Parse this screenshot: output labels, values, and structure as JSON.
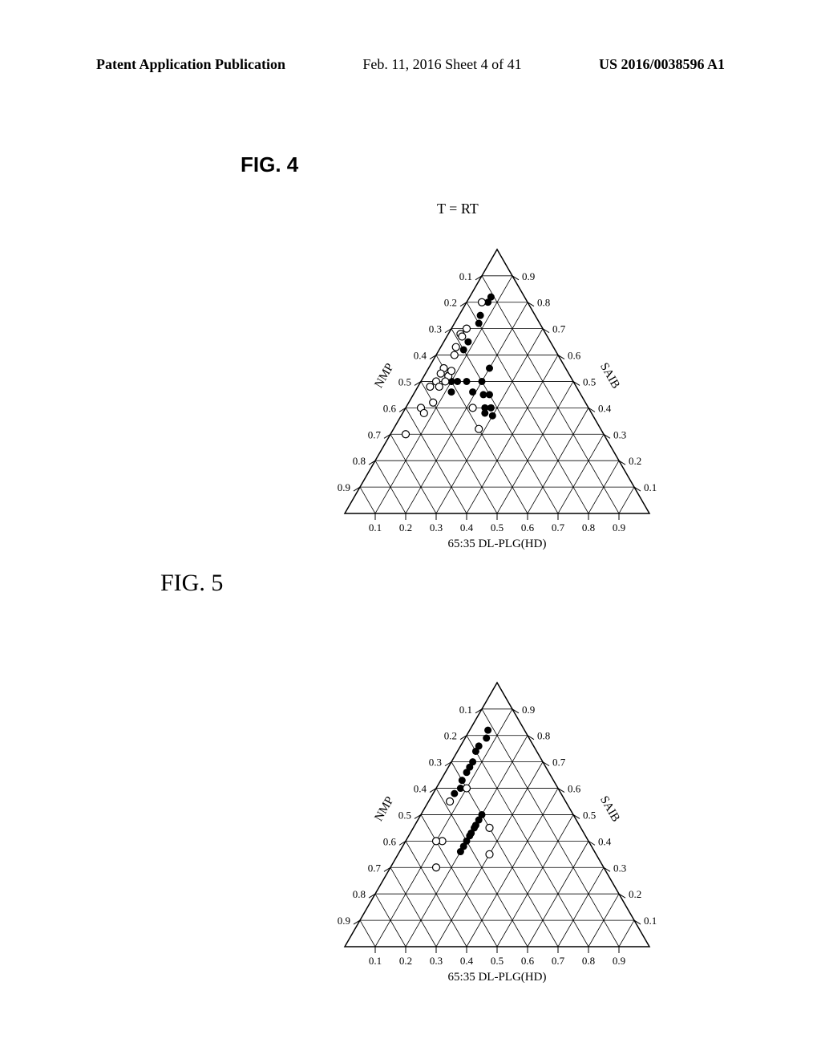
{
  "header": {
    "left": "Patent Application Publication",
    "center": "Feb. 11, 2016  Sheet 4 of 41",
    "right": "US 2016/0038596 A1"
  },
  "figures": {
    "fig4": {
      "label": "FIG. 4",
      "chart": {
        "type": "ternary",
        "title": "T = RT",
        "left_axis": {
          "label": "NMP",
          "ticks": [
            "0.1",
            "0.2",
            "0.3",
            "0.4",
            "0.5",
            "0.6",
            "0.7",
            "0.8",
            "0.9"
          ]
        },
        "right_axis": {
          "label": "SAIB",
          "ticks": [
            "0.1",
            "0.2",
            "0.3",
            "0.4",
            "0.5",
            "0.6",
            "0.7",
            "0.8",
            "0.9"
          ]
        },
        "bottom_axis": {
          "label": "65:35 DL-PLG(HD)",
          "ticks": [
            "0.1",
            "0.2",
            "0.3",
            "0.4",
            "0.5",
            "0.6",
            "0.7",
            "0.8",
            "0.9"
          ]
        },
        "grid_color": "#000000",
        "grid_width": 0.8,
        "background_color": "#ffffff",
        "tick_fontsize": 13,
        "axis_label_fontsize": 15,
        "title_fontsize": 18,
        "points_filled": [
          {
            "a": 0.11,
            "b": 0.82,
            "c": 0.07
          },
          {
            "a": 0.13,
            "b": 0.8,
            "c": 0.07
          },
          {
            "a": 0.18,
            "b": 0.75,
            "c": 0.07
          },
          {
            "a": 0.2,
            "b": 0.72,
            "c": 0.08
          },
          {
            "a": 0.27,
            "b": 0.65,
            "c": 0.08
          },
          {
            "a": 0.3,
            "b": 0.62,
            "c": 0.08
          },
          {
            "a": 0.4,
            "b": 0.5,
            "c": 0.1
          },
          {
            "a": 0.38,
            "b": 0.5,
            "c": 0.12
          },
          {
            "a": 0.42,
            "b": 0.46,
            "c": 0.12
          },
          {
            "a": 0.25,
            "b": 0.55,
            "c": 0.2
          },
          {
            "a": 0.3,
            "b": 0.5,
            "c": 0.2
          },
          {
            "a": 0.35,
            "b": 0.5,
            "c": 0.15
          },
          {
            "a": 0.4,
            "b": 0.5,
            "c": 0.1
          },
          {
            "a": 0.35,
            "b": 0.46,
            "c": 0.19
          },
          {
            "a": 0.32,
            "b": 0.45,
            "c": 0.23
          },
          {
            "a": 0.3,
            "b": 0.45,
            "c": 0.25
          },
          {
            "a": 0.34,
            "b": 0.4,
            "c": 0.26
          },
          {
            "a": 0.32,
            "b": 0.4,
            "c": 0.28
          },
          {
            "a": 0.35,
            "b": 0.38,
            "c": 0.27
          },
          {
            "a": 0.33,
            "b": 0.37,
            "c": 0.3
          }
        ],
        "points_hollow": [
          {
            "a": 0.15,
            "b": 0.8,
            "c": 0.05
          },
          {
            "a": 0.25,
            "b": 0.7,
            "c": 0.05
          },
          {
            "a": 0.28,
            "b": 0.68,
            "c": 0.04
          },
          {
            "a": 0.28,
            "b": 0.67,
            "c": 0.05
          },
          {
            "a": 0.32,
            "b": 0.63,
            "c": 0.05
          },
          {
            "a": 0.34,
            "b": 0.6,
            "c": 0.06
          },
          {
            "a": 0.4,
            "b": 0.55,
            "c": 0.05
          },
          {
            "a": 0.42,
            "b": 0.53,
            "c": 0.05
          },
          {
            "a": 0.45,
            "b": 0.5,
            "c": 0.05
          },
          {
            "a": 0.4,
            "b": 0.52,
            "c": 0.08
          },
          {
            "a": 0.42,
            "b": 0.5,
            "c": 0.08
          },
          {
            "a": 0.45,
            "b": 0.48,
            "c": 0.07
          },
          {
            "a": 0.55,
            "b": 0.4,
            "c": 0.05
          },
          {
            "a": 0.5,
            "b": 0.42,
            "c": 0.08
          },
          {
            "a": 0.55,
            "b": 0.38,
            "c": 0.07
          },
          {
            "a": 0.38,
            "b": 0.54,
            "c": 0.08
          },
          {
            "a": 0.48,
            "b": 0.48,
            "c": 0.04
          },
          {
            "a": 0.38,
            "b": 0.4,
            "c": 0.22
          },
          {
            "a": 0.4,
            "b": 0.32,
            "c": 0.28
          },
          {
            "a": 0.65,
            "b": 0.3,
            "c": 0.05
          }
        ],
        "point_radius": 4.5,
        "point_fill_color": "#000000",
        "point_hollow_stroke": "#000000",
        "point_hollow_fill": "#ffffff"
      }
    },
    "fig5": {
      "label": "FIG. 5",
      "chart": {
        "type": "ternary",
        "title": "",
        "left_axis": {
          "label": "NMP",
          "ticks": [
            "0.1",
            "0.2",
            "0.3",
            "0.4",
            "0.5",
            "0.6",
            "0.7",
            "0.8",
            "0.9"
          ]
        },
        "right_axis": {
          "label": "SAIB",
          "ticks": [
            "0.1",
            "0.2",
            "0.3",
            "0.4",
            "0.5",
            "0.6",
            "0.7",
            "0.8",
            "0.9"
          ]
        },
        "bottom_axis": {
          "label": "65:35 DL-PLG(HD)",
          "ticks": [
            "0.1",
            "0.2",
            "0.3",
            "0.4",
            "0.5",
            "0.6",
            "0.7",
            "0.8",
            "0.9"
          ]
        },
        "grid_color": "#000000",
        "grid_width": 0.8,
        "background_color": "#ffffff",
        "tick_fontsize": 13,
        "axis_label_fontsize": 15,
        "points_filled": [
          {
            "a": 0.12,
            "b": 0.82,
            "c": 0.06
          },
          {
            "a": 0.14,
            "b": 0.79,
            "c": 0.07
          },
          {
            "a": 0.18,
            "b": 0.76,
            "c": 0.06
          },
          {
            "a": 0.2,
            "b": 0.74,
            "c": 0.06
          },
          {
            "a": 0.23,
            "b": 0.7,
            "c": 0.07
          },
          {
            "a": 0.25,
            "b": 0.68,
            "c": 0.07
          },
          {
            "a": 0.27,
            "b": 0.66,
            "c": 0.07
          },
          {
            "a": 0.3,
            "b": 0.63,
            "c": 0.07
          },
          {
            "a": 0.32,
            "b": 0.6,
            "c": 0.08
          },
          {
            "a": 0.35,
            "b": 0.58,
            "c": 0.07
          },
          {
            "a": 0.3,
            "b": 0.5,
            "c": 0.2
          },
          {
            "a": 0.32,
            "b": 0.48,
            "c": 0.2
          },
          {
            "a": 0.34,
            "b": 0.46,
            "c": 0.2
          },
          {
            "a": 0.35,
            "b": 0.45,
            "c": 0.2
          },
          {
            "a": 0.37,
            "b": 0.43,
            "c": 0.2
          },
          {
            "a": 0.38,
            "b": 0.42,
            "c": 0.2
          },
          {
            "a": 0.4,
            "b": 0.4,
            "c": 0.2
          },
          {
            "a": 0.42,
            "b": 0.38,
            "c": 0.2
          },
          {
            "a": 0.44,
            "b": 0.36,
            "c": 0.2
          }
        ],
        "points_hollow": [
          {
            "a": 0.38,
            "b": 0.55,
            "c": 0.07
          },
          {
            "a": 0.3,
            "b": 0.6,
            "c": 0.1
          },
          {
            "a": 0.48,
            "b": 0.4,
            "c": 0.12
          },
          {
            "a": 0.5,
            "b": 0.4,
            "c": 0.1
          },
          {
            "a": 0.3,
            "b": 0.45,
            "c": 0.25
          },
          {
            "a": 0.55,
            "b": 0.3,
            "c": 0.15
          },
          {
            "a": 0.35,
            "b": 0.35,
            "c": 0.3
          }
        ],
        "point_radius": 4.5,
        "point_fill_color": "#000000",
        "point_hollow_stroke": "#000000",
        "point_hollow_fill": "#ffffff"
      }
    }
  }
}
